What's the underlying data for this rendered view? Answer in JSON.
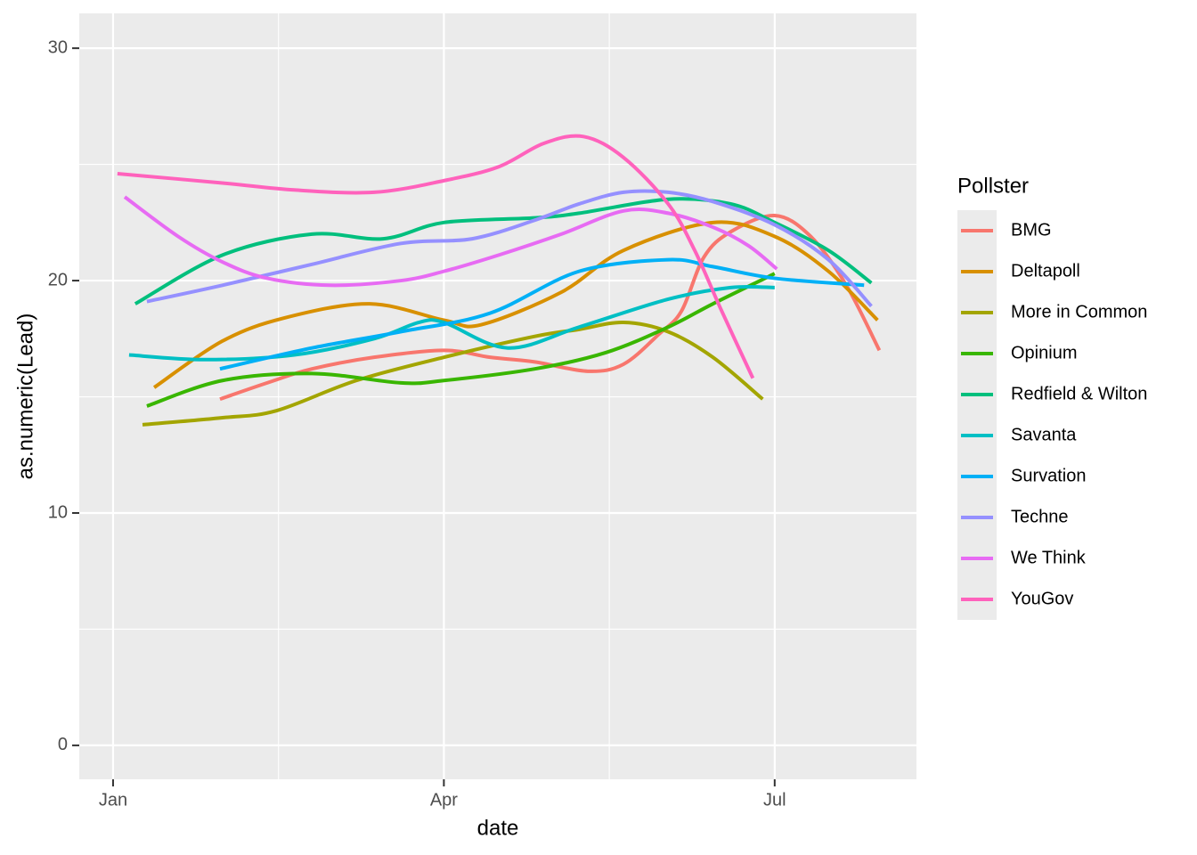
{
  "chart_data": {
    "type": "line",
    "x_label": "date",
    "y_label": "as.numeric(Lead)",
    "legend_title": "Pollster",
    "legend": "right",
    "grid": true,
    "xlim": [
      -9.3,
      221
    ],
    "xticks": [
      {
        "value": 0,
        "label": "Jan"
      },
      {
        "value": 91,
        "label": "Apr"
      },
      {
        "value": 182,
        "label": "Jul"
      }
    ],
    "ylim": [
      -1.46,
      31.5
    ],
    "yticks": [
      0,
      10,
      20,
      30
    ],
    "series": [
      {
        "name": "BMG",
        "color": "#F8766D",
        "x": [
          29.4,
          42.4,
          54.7,
          71.8,
          91,
          103.7,
          116,
          130.6,
          140.4,
          150.2,
          156.4,
          162.5,
          169.9,
          182,
          191.9,
          201.7,
          210.8
        ],
        "values": [
          14.9,
          15.6,
          16.2,
          16.7,
          17.0,
          16.7,
          16.5,
          16.1,
          16.4,
          17.7,
          18.7,
          21.0,
          22.1,
          22.8,
          21.9,
          19.8,
          17.0
        ]
      },
      {
        "name": "Deltapoll",
        "color": "#D89000",
        "x": [
          11.3,
          30.1,
          47.3,
          70.6,
          91,
          101.2,
          123.3,
          140.4,
          165,
          182,
          196.8,
          210.3
        ],
        "values": [
          15.4,
          17.4,
          18.4,
          19.0,
          18.3,
          18.1,
          19.5,
          21.3,
          22.5,
          21.9,
          20.4,
          18.3
        ]
      },
      {
        "name": "More in Common",
        "color": "#A3A500",
        "x": [
          8.1,
          30.1,
          44.9,
          66.9,
          91,
          116,
          128.2,
          140.4,
          152.7,
          165,
          178.7
        ],
        "values": [
          13.8,
          14.1,
          14.4,
          15.7,
          16.7,
          17.6,
          17.9,
          18.2,
          17.8,
          16.7,
          14.9
        ]
      },
      {
        "name": "Opinium",
        "color": "#39B600",
        "x": [
          9.3,
          30.1,
          54.7,
          79.2,
          91,
          116,
          135.5,
          152.7,
          165,
          182
        ],
        "values": [
          14.6,
          15.7,
          16.0,
          15.6,
          15.7,
          16.2,
          16.9,
          18.0,
          19.0,
          20.3
        ]
      },
      {
        "name": "Redfield & Wilton",
        "color": "#00BF7D",
        "x": [
          6.1,
          30.1,
          54.7,
          74.3,
          91,
          116,
          128.2,
          152.7,
          169.9,
          182,
          196.8,
          208.6
        ],
        "values": [
          19.0,
          21.1,
          22.0,
          21.8,
          22.5,
          22.7,
          22.9,
          23.5,
          23.3,
          22.5,
          21.3,
          19.9
        ]
      },
      {
        "name": "Savanta",
        "color": "#00BFC4",
        "x": [
          4.4,
          25.2,
          49.8,
          71.8,
          84.1,
          91,
          108.6,
          128.2,
          152.7,
          169.9,
          182
        ],
        "values": [
          16.8,
          16.6,
          16.8,
          17.5,
          18.2,
          18.2,
          17.1,
          18.0,
          19.2,
          19.7,
          19.7
        ]
      },
      {
        "name": "Survation",
        "color": "#00B0F6",
        "x": [
          29.4,
          54.7,
          79.2,
          103.7,
          128.2,
          152.7,
          165,
          182,
          206.6
        ],
        "values": [
          16.2,
          17.1,
          17.8,
          18.6,
          20.4,
          20.9,
          20.6,
          20.1,
          19.8
        ]
      },
      {
        "name": "Techne",
        "color": "#9590FF",
        "x": [
          9.3,
          30.1,
          54.7,
          79.2,
          98.8,
          116,
          128.2,
          140.4,
          152.7,
          165,
          182,
          196.8,
          208.6
        ],
        "values": [
          19.1,
          19.8,
          20.7,
          21.6,
          21.8,
          22.6,
          23.3,
          23.8,
          23.8,
          23.4,
          22.4,
          20.9,
          18.9
        ]
      },
      {
        "name": "We Think",
        "color": "#E76BF3",
        "x": [
          3.2,
          17.9,
          30.1,
          42.4,
          59.6,
          79.2,
          91,
          106.1,
          123.3,
          140.4,
          152.7,
          165,
          174.8,
          182.6
        ],
        "values": [
          23.6,
          21.9,
          20.8,
          20.1,
          19.8,
          20.0,
          20.4,
          21.1,
          22.0,
          23.0,
          22.9,
          22.3,
          21.5,
          20.5
        ]
      },
      {
        "name": "YouGov",
        "color": "#FF62BC",
        "x": [
          1.2,
          30.1,
          49.8,
          71.8,
          91,
          106.1,
          118.4,
          129.4,
          140.4,
          152.7,
          160,
          167.4,
          176
        ],
        "values": [
          24.6,
          24.2,
          23.9,
          23.8,
          24.3,
          24.9,
          25.9,
          26.2,
          25.3,
          23.3,
          21.3,
          18.7,
          15.8
        ]
      }
    ]
  }
}
